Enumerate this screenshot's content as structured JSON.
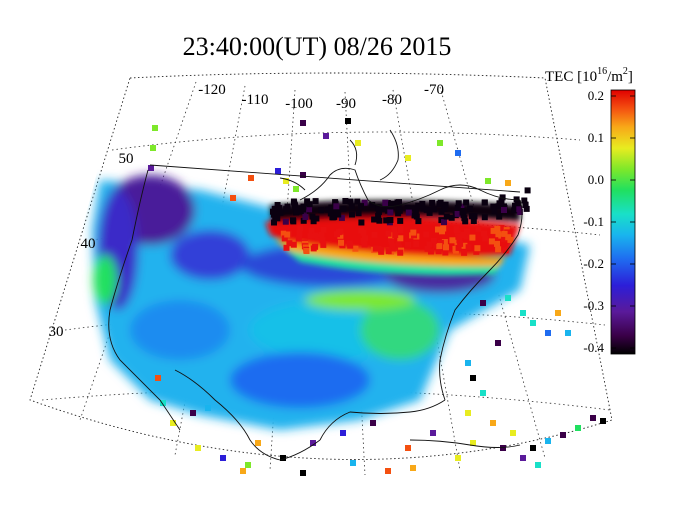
{
  "title": "23:40:00(UT)  08/26 2015",
  "map": {
    "longitude_labels": [
      "-120",
      "-110",
      "-100",
      "-90",
      "-80",
      "-70"
    ],
    "latitude_labels": [
      "50",
      "40",
      "30"
    ]
  },
  "colorbar": {
    "label_main": "TEC [10",
    "label_exp": "16",
    "label_unit": "/m",
    "label_exp2": "2",
    "label_close": "]",
    "range": [
      -0.4,
      0.2
    ],
    "ticks": [
      "0.2",
      "0.1",
      "0.0",
      "-0.1",
      "-0.2",
      "-0.3",
      "-0.4"
    ],
    "colors": [
      "#000000",
      "#3a0048",
      "#5a1a9a",
      "#2c1ed8",
      "#1f6cf0",
      "#19b4ee",
      "#19e0c8",
      "#20e060",
      "#7ee82a",
      "#e8ec20",
      "#f8a818",
      "#f45010",
      "#e00000"
    ]
  }
}
